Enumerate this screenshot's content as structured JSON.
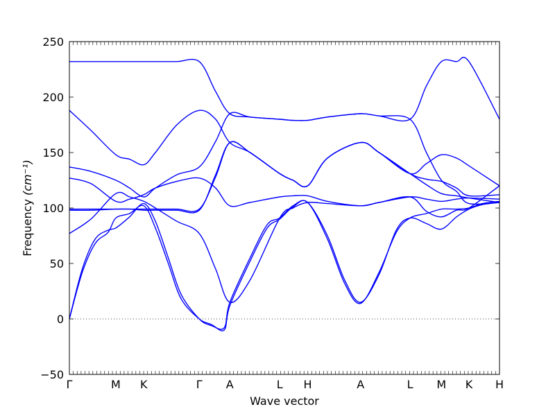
{
  "chart_data": {
    "type": "line",
    "xlabel": "Wave vector",
    "ylabel": "Frequency",
    "ylabel_unit": "(cm⁻¹)",
    "ylim": [
      -50,
      250
    ],
    "yticks": [
      -50,
      0,
      50,
      100,
      150,
      200,
      250
    ],
    "ytick_labels": [
      "−50",
      "0",
      "50",
      "100",
      "150",
      "200",
      "250"
    ],
    "xlim": [
      0,
      1
    ],
    "high_symmetry_points": [
      {
        "label": "Γ",
        "x": 0.0
      },
      {
        "label": "M",
        "x": 0.108
      },
      {
        "label": "K",
        "x": 0.173
      },
      {
        "label": "Γ",
        "x": 0.302
      },
      {
        "label": "A",
        "x": 0.373
      },
      {
        "label": "L",
        "x": 0.489
      },
      {
        "label": "H",
        "x": 0.554
      },
      {
        "label": "A",
        "x": 0.677
      },
      {
        "label": "L",
        "x": 0.792
      },
      {
        "label": "M",
        "x": 0.865
      },
      {
        "label": "K",
        "x": 0.929
      },
      {
        "label": "H",
        "x": 1.0
      }
    ],
    "zero_line": 0,
    "series": [
      {
        "x": [
          0.0,
          0.03,
          0.06,
          0.09,
          0.108,
          0.14,
          0.173,
          0.2,
          0.23,
          0.26,
          0.302,
          0.33,
          0.36,
          0.373,
          0.42,
          0.46,
          0.489,
          0.52,
          0.554,
          0.6,
          0.64,
          0.677,
          0.72,
          0.76,
          0.792,
          0.83,
          0.865,
          0.9,
          0.929,
          0.96,
          1.0
        ],
        "values": [
          0,
          45,
          72,
          80,
          82,
          92,
          104,
          88,
          55,
          22,
          0,
          -6,
          -8,
          15,
          55,
          85,
          91,
          102,
          105,
          75,
          35,
          15,
          40,
          80,
          91,
          86,
          81,
          92,
          99,
          103,
          105
        ]
      },
      {
        "x": [
          0.0,
          0.03,
          0.06,
          0.09,
          0.108,
          0.14,
          0.173,
          0.2,
          0.23,
          0.26,
          0.302,
          0.33,
          0.36,
          0.373,
          0.42,
          0.46,
          0.489,
          0.52,
          0.554,
          0.6,
          0.64,
          0.677,
          0.72,
          0.76,
          0.792,
          0.83,
          0.865,
          0.9,
          0.929,
          0.96,
          1.0
        ],
        "values": [
          0,
          42,
          68,
          78,
          91,
          95,
          102,
          82,
          50,
          18,
          0,
          -5,
          -10,
          12,
          52,
          82,
          90,
          101,
          105,
          72,
          32,
          14,
          42,
          78,
          91,
          95,
          99,
          99,
          100,
          104,
          106
        ]
      },
      {
        "x": [
          0.0,
          0.05,
          0.108,
          0.14,
          0.173,
          0.2,
          0.25,
          0.302,
          0.34,
          0.373,
          0.42,
          0.489,
          0.52,
          0.554,
          0.6,
          0.677,
          0.72,
          0.792,
          0.83,
          0.865,
          0.9,
          0.929,
          1.0
        ],
        "values": [
          77,
          90,
          113,
          110,
          106,
          100,
          88,
          77,
          45,
          15,
          35,
          91,
          100,
          105,
          104,
          102,
          105,
          110,
          97,
          92,
          98,
          100,
          120
        ]
      },
      {
        "x": [
          0.0,
          0.05,
          0.108,
          0.14,
          0.173,
          0.2,
          0.25,
          0.302,
          0.34,
          0.373,
          0.42,
          0.489,
          0.52,
          0.554,
          0.6,
          0.677,
          0.72,
          0.792,
          0.83,
          0.865,
          0.9,
          0.929,
          1.0
        ],
        "values": [
          98,
          98,
          99,
          99,
          98,
          98,
          98,
          98,
          130,
          159,
          150,
          131,
          125,
          120,
          145,
          159,
          150,
          131,
          140,
          148,
          145,
          138,
          120
        ]
      },
      {
        "x": [
          0.0,
          0.05,
          0.108,
          0.14,
          0.173,
          0.2,
          0.25,
          0.302,
          0.34,
          0.373,
          0.42,
          0.489,
          0.52,
          0.554,
          0.6,
          0.677,
          0.72,
          0.792,
          0.83,
          0.865,
          0.9,
          0.929,
          1.0
        ],
        "values": [
          99,
          99,
          99,
          99,
          99,
          99,
          99,
          99,
          128,
          159,
          150,
          131,
          125,
          120,
          145,
          159,
          150,
          131,
          121,
          113,
          111,
          109,
          105
        ]
      },
      {
        "x": [
          0.0,
          0.05,
          0.108,
          0.14,
          0.173,
          0.2,
          0.25,
          0.302,
          0.34,
          0.373,
          0.42,
          0.489,
          0.52,
          0.554,
          0.6,
          0.677,
          0.72,
          0.792,
          0.83,
          0.865,
          0.9,
          0.929,
          1.0
        ],
        "values": [
          127,
          122,
          106,
          108,
          112,
          118,
          124,
          127,
          118,
          102,
          105,
          110,
          111,
          111,
          106,
          102,
          105,
          110,
          108,
          106,
          108,
          109,
          108
        ]
      },
      {
        "x": [
          0.0,
          0.05,
          0.108,
          0.14,
          0.173,
          0.2,
          0.25,
          0.302,
          0.34,
          0.373,
          0.42,
          0.489,
          0.52,
          0.554,
          0.6,
          0.677,
          0.72,
          0.792,
          0.83,
          0.865,
          0.9,
          0.929,
          1.0
        ],
        "values": [
          137,
          133,
          125,
          118,
          110,
          118,
          130,
          137,
          160,
          185,
          182,
          180,
          179,
          179,
          182,
          185,
          183,
          180,
          210,
          232,
          232,
          232,
          180
        ]
      },
      {
        "x": [
          0.0,
          0.05,
          0.108,
          0.14,
          0.173,
          0.2,
          0.25,
          0.302,
          0.34,
          0.373,
          0.42,
          0.489,
          0.52,
          0.554,
          0.6,
          0.677,
          0.72,
          0.792,
          0.83,
          0.865,
          0.9,
          0.929,
          1.0
        ],
        "values": [
          188,
          170,
          148,
          144,
          139,
          150,
          175,
          188,
          180,
          159,
          150,
          131,
          125,
          120,
          145,
          159,
          150,
          131,
          126,
          124,
          118,
          111,
          112
        ]
      },
      {
        "x": [
          0.0,
          0.05,
          0.108,
          0.14,
          0.173,
          0.2,
          0.25,
          0.302,
          0.34,
          0.373,
          0.42,
          0.489,
          0.52,
          0.554,
          0.6,
          0.677,
          0.72,
          0.792,
          0.83,
          0.865,
          0.9,
          0.929,
          1.0
        ],
        "values": [
          232,
          232,
          232,
          232,
          232,
          232,
          232,
          232,
          205,
          185,
          182,
          180,
          179,
          179,
          182,
          185,
          183,
          180,
          150,
          125,
          115,
          104,
          105
        ]
      }
    ]
  }
}
